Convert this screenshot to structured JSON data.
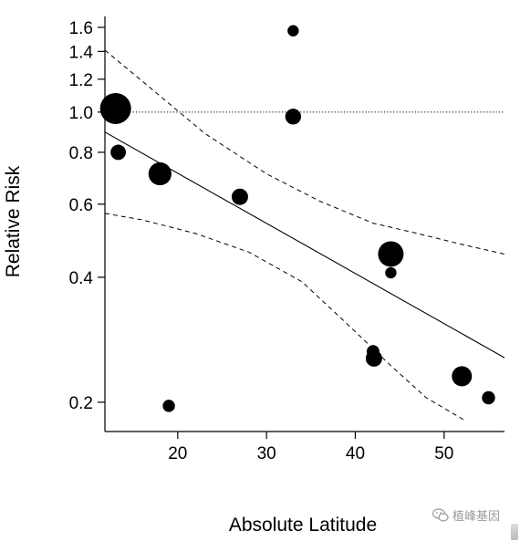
{
  "chart_data": {
    "type": "scatter",
    "xlabel": "Absolute Latitude",
    "ylabel": "Relative Risk",
    "log_y": true,
    "xlim": [
      11.8,
      56.8
    ],
    "ylim": [
      0.17,
      1.7
    ],
    "x_ticks": [
      20,
      30,
      40,
      50
    ],
    "y_ticks": [
      0.2,
      0.4,
      0.6,
      0.8,
      1.0,
      1.2,
      1.4,
      1.6
    ],
    "y_tick_labels": [
      "0.2",
      "0.4",
      "0.6",
      "0.8",
      "1.0",
      "1.2",
      "1.4",
      "1.6"
    ],
    "reference_line": {
      "y": 1.0,
      "style": "dotted"
    },
    "points": [
      {
        "x": 13,
        "y": 1.02,
        "weight": 1.0
      },
      {
        "x": 13.3,
        "y": 0.8,
        "weight": 0.18
      },
      {
        "x": 18,
        "y": 0.71,
        "weight": 0.5
      },
      {
        "x": 19,
        "y": 0.196,
        "weight": 0.1
      },
      {
        "x": 27,
        "y": 0.625,
        "weight": 0.22
      },
      {
        "x": 33,
        "y": 1.57,
        "weight": 0.08
      },
      {
        "x": 33,
        "y": 0.975,
        "weight": 0.2
      },
      {
        "x": 42,
        "y": 0.265,
        "weight": 0.11
      },
      {
        "x": 42.1,
        "y": 0.255,
        "weight": 0.22
      },
      {
        "x": 44,
        "y": 0.455,
        "weight": 0.64
      },
      {
        "x": 44,
        "y": 0.41,
        "weight": 0.08
      },
      {
        "x": 52,
        "y": 0.231,
        "weight": 0.36
      },
      {
        "x": 55,
        "y": 0.205,
        "weight": 0.12
      }
    ],
    "fit_line": {
      "x": [
        11.8,
        56.8
      ],
      "y": [
        0.895,
        0.256
      ]
    },
    "ci_upper": {
      "x": [
        11.8,
        17,
        23,
        30,
        36,
        42,
        47,
        52,
        56.8
      ],
      "y": [
        1.41,
        1.14,
        0.89,
        0.71,
        0.61,
        0.54,
        0.51,
        0.48,
        0.455
      ]
    },
    "ci_lower": {
      "x": [
        11.8,
        16,
        22,
        28,
        34,
        39,
        44,
        48,
        52.5
      ],
      "y": [
        0.57,
        0.55,
        0.51,
        0.46,
        0.39,
        0.31,
        0.245,
        0.205,
        0.18
      ]
    }
  },
  "watermark": {
    "text": "植峰基因"
  },
  "colors": {
    "marks": "#000000",
    "background": "#ffffff",
    "watermark": "#9a9a9a"
  }
}
